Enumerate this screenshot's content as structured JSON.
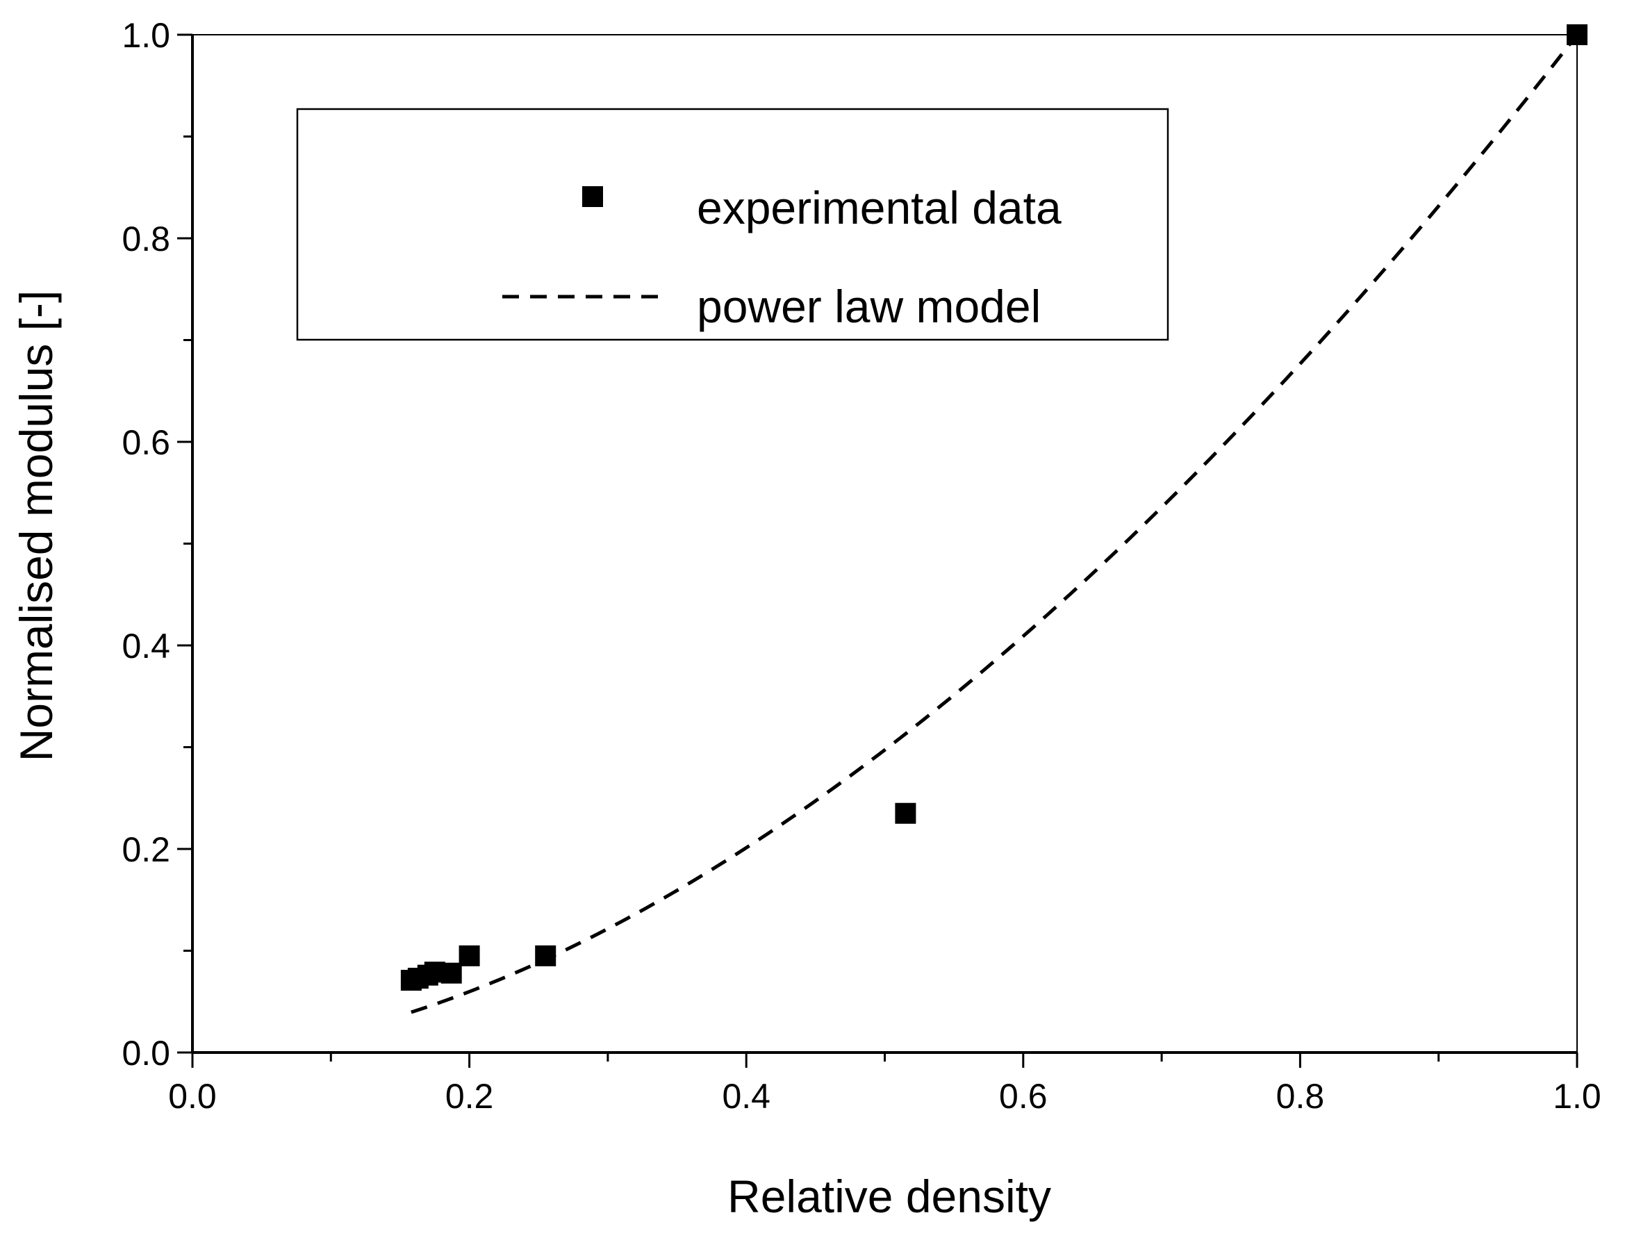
{
  "chart_data": {
    "type": "scatter",
    "title": "",
    "xlabel": "Relative density",
    "ylabel": "Normalised modulus [-]",
    "xlim": [
      0.0,
      1.0
    ],
    "ylim": [
      0.0,
      1.0
    ],
    "xticks": [
      "0.0",
      "0.2",
      "0.4",
      "0.6",
      "0.8",
      "1.0"
    ],
    "yticks": [
      "0.0",
      "0.2",
      "0.4",
      "0.6",
      "0.8",
      "1.0"
    ],
    "grid": false,
    "legend_position": "top-left",
    "legend": [
      {
        "label": "experimental data",
        "marker": "square"
      },
      {
        "label": "power law model",
        "style": "dashed"
      }
    ],
    "series": [
      {
        "name": "experimental data",
        "style": "square-marker",
        "color": "#000000",
        "x": [
          0.158,
          0.163,
          0.17,
          0.175,
          0.187,
          0.2,
          0.255,
          0.515,
          1.0
        ],
        "y": [
          0.071,
          0.073,
          0.076,
          0.079,
          0.078,
          0.095,
          0.095,
          0.235,
          1.0
        ]
      },
      {
        "name": "power law model",
        "style": "dashed",
        "color": "#000000",
        "equation": "y = x^1.75",
        "x_range": [
          0.158,
          1.0
        ]
      }
    ]
  }
}
